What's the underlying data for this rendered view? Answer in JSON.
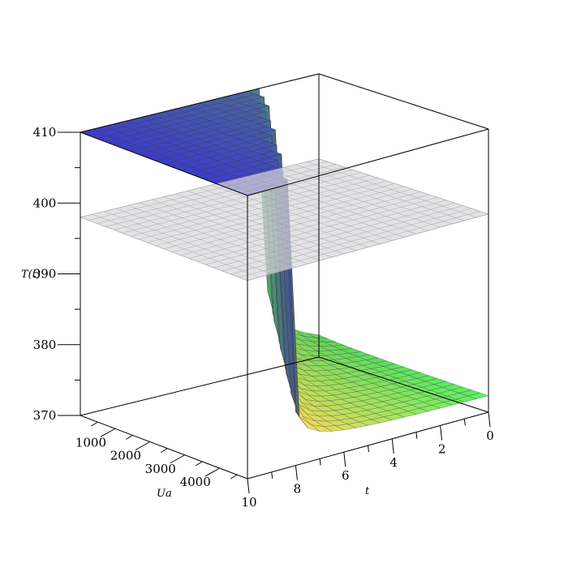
{
  "chart_data": {
    "type": "surface3d",
    "title": "",
    "xlabel": "t",
    "ylabel": "Ua",
    "zlabel": "T(t)",
    "xlim": [
      0,
      10
    ],
    "ylim": [
      0,
      4800
    ],
    "zlim": [
      370,
      410
    ],
    "x_ticks": [
      "0",
      "2",
      "4",
      "6",
      "8",
      "10"
    ],
    "y_ticks": [
      "1000",
      "2000",
      "3000",
      "4000"
    ],
    "z_ticks": [
      "370",
      "380",
      "390",
      "400",
      "410"
    ],
    "plane_level": 398,
    "surface": {
      "t": [
        0,
        1,
        2,
        3,
        4,
        5,
        6,
        7,
        8,
        9,
        10
      ],
      "Ua": [
        0,
        1000,
        2000,
        3000,
        4000,
        4800
      ],
      "note_values": "T(t) temperature surface rising steeply toward 410 at small Ua and mid t, low (~372) elsewhere",
      "base_level": 372,
      "peak_level": 410
    },
    "colors": {
      "low_corner": "#e34a4a",
      "mid": "#f0e85a",
      "high_t": "#4cd86a",
      "peak": "#4a2f8a",
      "peak_blue": "#3f5fd0",
      "plane": "#d8d8dc"
    }
  }
}
